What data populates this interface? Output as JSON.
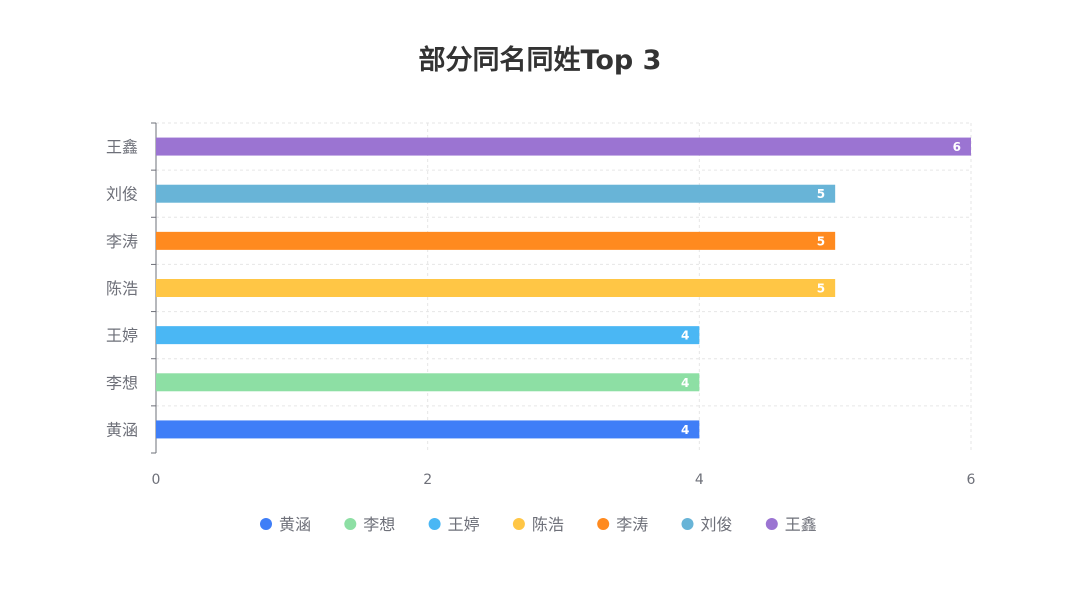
{
  "chart_data": {
    "type": "bar",
    "orientation": "horizontal",
    "title": "部分同名同姓Top 3",
    "categories": [
      "黄涵",
      "李想",
      "王婷",
      "陈浩",
      "李涛",
      "刘俊",
      "王鑫"
    ],
    "values": [
      4,
      4,
      4,
      5,
      5,
      5,
      6
    ],
    "colors": [
      "#3f7ef7",
      "#8ddfa4",
      "#4ab7f4",
      "#ffc645",
      "#ff8a1f",
      "#68b4d7",
      "#9b74d2"
    ],
    "xlim": [
      0,
      6
    ],
    "xticks": [
      0,
      2,
      4,
      6
    ],
    "grid": true,
    "legend_position": "bottom",
    "legend": [
      "黄涵",
      "李想",
      "王婷",
      "陈浩",
      "李涛",
      "刘俊",
      "王鑫"
    ]
  }
}
